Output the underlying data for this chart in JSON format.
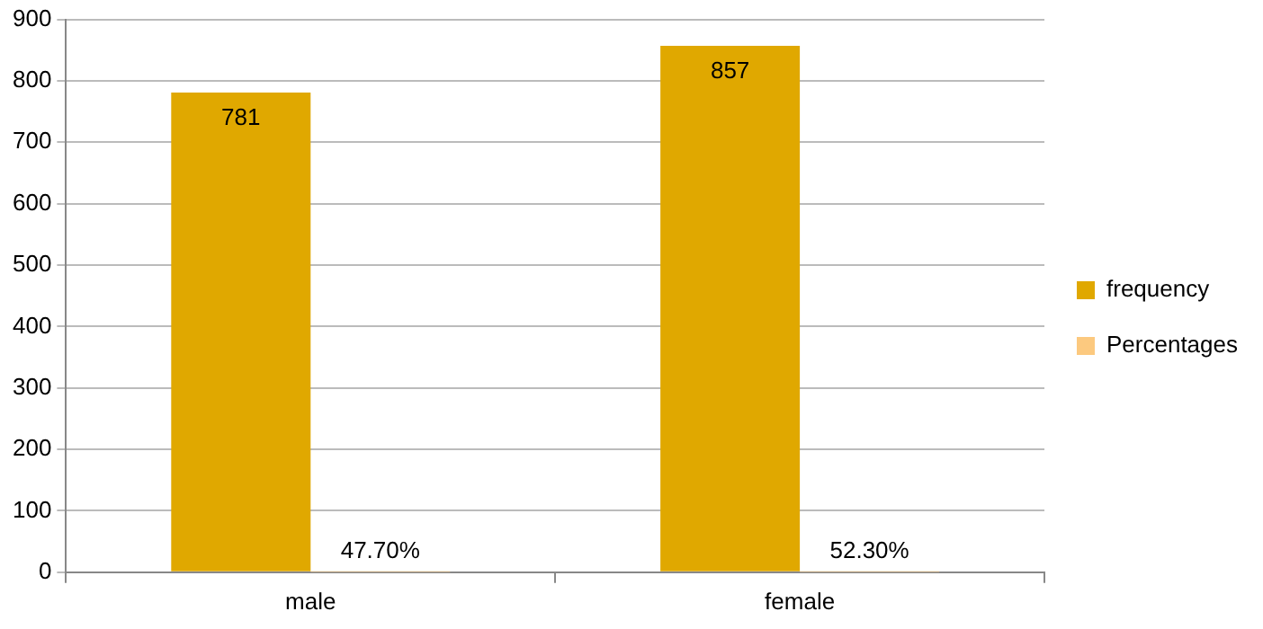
{
  "chart_data": {
    "type": "bar",
    "categories": [
      "male",
      "female"
    ],
    "series": [
      {
        "name": "frequency",
        "color": "#e0a800",
        "values": [
          781,
          857
        ],
        "value_labels": [
          "781",
          "857"
        ]
      },
      {
        "name": "Percentages",
        "color": "#fcc97f",
        "values": [
          0.477,
          0.523
        ],
        "value_labels": [
          "47.70%",
          "52.30%"
        ]
      }
    ],
    "ylim": [
      0,
      900
    ],
    "yticks": [
      0,
      100,
      200,
      300,
      400,
      500,
      600,
      700,
      800,
      900
    ],
    "grid": "y",
    "legend": "right"
  }
}
